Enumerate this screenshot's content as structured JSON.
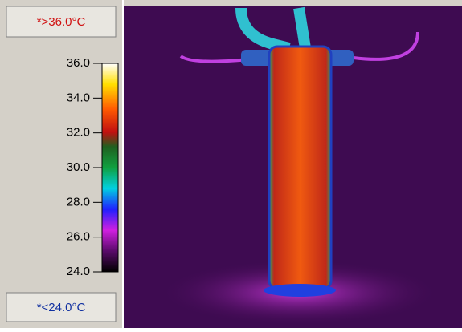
{
  "top_label": "*>36.0°C",
  "bottom_label": "*<24.0°C",
  "scale": {
    "min": 24,
    "max": 36,
    "ticks": [
      {
        "value": 24,
        "label": "24.0"
      },
      {
        "value": 26,
        "label": "26.0"
      },
      {
        "value": 28,
        "label": "28.0"
      },
      {
        "value": 30,
        "label": "30.0"
      },
      {
        "value": 32,
        "label": "32.0"
      },
      {
        "value": 34,
        "label": "34.0"
      },
      {
        "value": 36,
        "label": "36.0"
      }
    ]
  }
}
